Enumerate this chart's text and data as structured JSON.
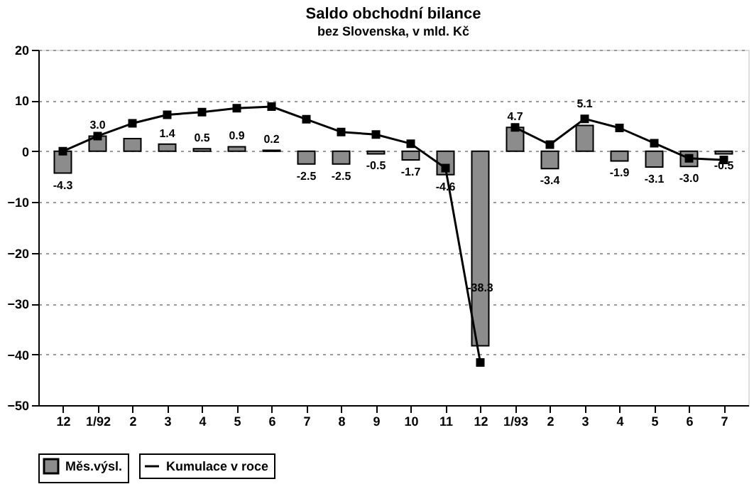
{
  "chart_data": {
    "type": "bar",
    "title": "Saldo obchodní bilance",
    "subtitle": "bez Slovenska, v mld. Kč",
    "categories": [
      "12",
      "1/92",
      "2",
      "3",
      "4",
      "5",
      "6",
      "7",
      "8",
      "9",
      "10",
      "11",
      "12",
      "1/93",
      "2",
      "3",
      "4",
      "5",
      "6",
      "7"
    ],
    "series": [
      {
        "name": "Měs.výsl.",
        "color": "#8c8c8c",
        "values": [
          -4.3,
          3.0,
          2.5,
          1.4,
          0.5,
          0.9,
          0.2,
          -2.5,
          -2.5,
          -0.5,
          -1.7,
          -4.6,
          -38.3,
          4.7,
          -3.4,
          5.1,
          -1.9,
          -3.1,
          -3.0,
          -0.5
        ],
        "value_labels": [
          "-4.3",
          "3.0",
          null,
          "1.4",
          "0.5",
          "0.9",
          "0.2",
          "-2.5",
          "-2.5",
          "-0.5",
          "-1.7",
          "-4.6",
          "-38.3",
          "4.7",
          "-3.4",
          "5.1",
          "-1.9",
          "-3.1",
          "-3.0",
          "-0.5"
        ]
      },
      {
        "name": "Kumulace v roce",
        "type": "line",
        "color": "#000000",
        "marker": "square",
        "values": [
          0,
          3.0,
          5.5,
          7.2,
          7.7,
          8.5,
          8.8,
          6.3,
          3.8,
          3.3,
          1.5,
          -3.3,
          -41.6,
          null,
          null,
          null,
          null,
          null,
          null,
          null
        ]
      },
      {
        "type": "line",
        "color": "#000000",
        "marker": "square",
        "values": [
          null,
          null,
          null,
          null,
          null,
          null,
          null,
          null,
          null,
          null,
          null,
          null,
          null,
          4.7,
          1.3,
          6.4,
          4.6,
          1.6,
          -1.4,
          -1.7
        ]
      }
    ],
    "ylim": [
      -50,
      20
    ],
    "yticks": [
      -50,
      -40,
      -30,
      -20,
      -10,
      0,
      10,
      20
    ],
    "grid": "y",
    "legend": "bottom"
  }
}
